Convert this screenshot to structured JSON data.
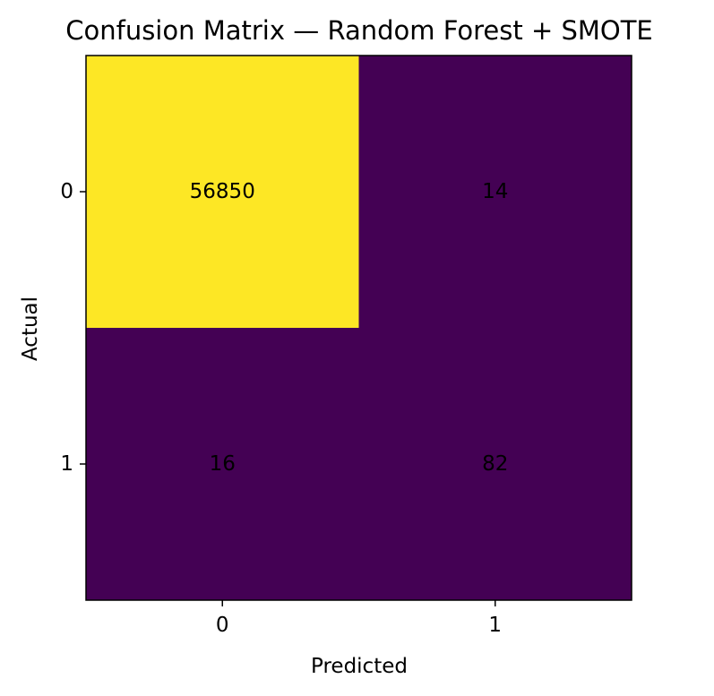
{
  "chart_data": {
    "type": "heatmap",
    "title": "Confusion Matrix — Random Forest + SMOTE",
    "xlabel": "Predicted",
    "ylabel": "Actual",
    "x_categories": [
      "0",
      "1"
    ],
    "y_categories": [
      "0",
      "1"
    ],
    "values": [
      [
        56850,
        14
      ],
      [
        16,
        82
      ]
    ],
    "colormap": "viridis",
    "colors": {
      "low": "#440154",
      "high": "#fde725",
      "text": "#000000"
    },
    "grid": false,
    "legend": "none"
  }
}
